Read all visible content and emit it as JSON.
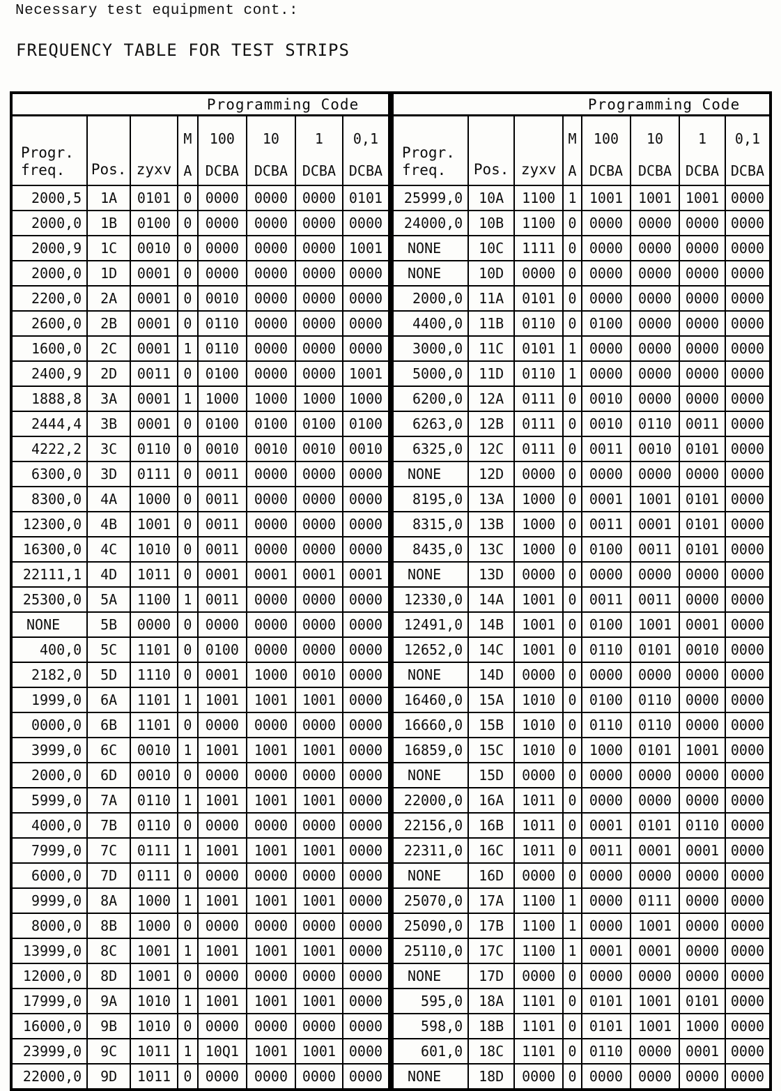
{
  "page": {
    "line1": "Necessary test equipment cont.:",
    "title": "FREQUENCY TABLE FOR TEST STRIPS"
  },
  "table": {
    "group_header": "Programming Code",
    "header": {
      "freq_line1": "Progr.",
      "freq_line2": "freq.",
      "pos": "Pos.",
      "zyxv": "zyxv",
      "m": "M",
      "a": "A",
      "w100": "100",
      "w10": "10",
      "w1": "1",
      "w01": "0,1",
      "dcba": "DCBA"
    },
    "left_rows": [
      [
        "2000,5",
        "1A",
        "0101",
        "0",
        "0000",
        "0000",
        "0000",
        "0101"
      ],
      [
        "2000,0",
        "1B",
        "0100",
        "0",
        "0000",
        "0000",
        "0000",
        "0000"
      ],
      [
        "2000,9",
        "1C",
        "0010",
        "0",
        "0000",
        "0000",
        "0000",
        "1001"
      ],
      [
        "2000,0",
        "1D",
        "0001",
        "0",
        "0000",
        "0000",
        "0000",
        "0000"
      ],
      [
        "2200,0",
        "2A",
        "0001",
        "0",
        "0010",
        "0000",
        "0000",
        "0000"
      ],
      [
        "2600,0",
        "2B",
        "0001",
        "0",
        "0110",
        "0000",
        "0000",
        "0000"
      ],
      [
        "1600,0",
        "2C",
        "0001",
        "1",
        "0110",
        "0000",
        "0000",
        "0000"
      ],
      [
        "2400,9",
        "2D",
        "0011",
        "0",
        "0100",
        "0000",
        "0000",
        "1001"
      ],
      [
        "1888,8",
        "3A",
        "0001",
        "1",
        "1000",
        "1000",
        "1000",
        "1000"
      ],
      [
        "2444,4",
        "3B",
        "0001",
        "0",
        "0100",
        "0100",
        "0100",
        "0100"
      ],
      [
        "4222,2",
        "3C",
        "0110",
        "0",
        "0010",
        "0010",
        "0010",
        "0010"
      ],
      [
        "6300,0",
        "3D",
        "0111",
        "0",
        "0011",
        "0000",
        "0000",
        "0000"
      ],
      [
        "8300,0",
        "4A",
        "1000",
        "0",
        "0011",
        "0000",
        "0000",
        "0000"
      ],
      [
        "12300,0",
        "4B",
        "1001",
        "0",
        "0011",
        "0000",
        "0000",
        "0000"
      ],
      [
        "16300,0",
        "4C",
        "1010",
        "0",
        "0011",
        "0000",
        "0000",
        "0000"
      ],
      [
        "22111,1",
        "4D",
        "1011",
        "0",
        "0001",
        "0001",
        "0001",
        "0001"
      ],
      [
        "25300,0",
        "5A",
        "1100",
        "1",
        "0011",
        "0000",
        "0000",
        "0000"
      ],
      [
        "NONE",
        "5B",
        "0000",
        "0",
        "0000",
        "0000",
        "0000",
        "0000"
      ],
      [
        "400,0",
        "5C",
        "1101",
        "0",
        "0100",
        "0000",
        "0000",
        "0000"
      ],
      [
        "2182,0",
        "5D",
        "1110",
        "0",
        "0001",
        "1000",
        "0010",
        "0000"
      ],
      [
        "1999,0",
        "6A",
        "1101",
        "1",
        "1001",
        "1001",
        "1001",
        "0000"
      ],
      [
        "0000,0",
        "6B",
        "1101",
        "0",
        "0000",
        "0000",
        "0000",
        "0000"
      ],
      [
        "3999,0",
        "6C",
        "0010",
        "1",
        "1001",
        "1001",
        "1001",
        "0000"
      ],
      [
        "2000,0",
        "6D",
        "0010",
        "0",
        "0000",
        "0000",
        "0000",
        "0000"
      ],
      [
        "5999,0",
        "7A",
        "0110",
        "1",
        "1001",
        "1001",
        "1001",
        "0000"
      ],
      [
        "4000,0",
        "7B",
        "0110",
        "0",
        "0000",
        "0000",
        "0000",
        "0000"
      ],
      [
        "7999,0",
        "7C",
        "0111",
        "1",
        "1001",
        "1001",
        "1001",
        "0000"
      ],
      [
        "6000,0",
        "7D",
        "0111",
        "0",
        "0000",
        "0000",
        "0000",
        "0000"
      ],
      [
        "9999,0",
        "8A",
        "1000",
        "1",
        "1001",
        "1001",
        "1001",
        "0000"
      ],
      [
        "8000,0",
        "8B",
        "1000",
        "0",
        "0000",
        "0000",
        "0000",
        "0000"
      ],
      [
        "13999,0",
        "8C",
        "1001",
        "1",
        "1001",
        "1001",
        "1001",
        "0000"
      ],
      [
        "12000,0",
        "8D",
        "1001",
        "0",
        "0000",
        "0000",
        "0000",
        "0000"
      ],
      [
        "17999,0",
        "9A",
        "1010",
        "1",
        "1001",
        "1001",
        "1001",
        "0000"
      ],
      [
        "16000,0",
        "9B",
        "1010",
        "0",
        "0000",
        "0000",
        "0000",
        "0000"
      ],
      [
        "23999,0",
        "9C",
        "1011",
        "1",
        "10Q1",
        "1001",
        "1001",
        "0000"
      ],
      [
        "22000,0",
        "9D",
        "1011",
        "0",
        "0000",
        "0000",
        "0000",
        "0000"
      ]
    ],
    "right_rows": [
      [
        "25999,0",
        "10A",
        "1100",
        "1",
        "1001",
        "1001",
        "1001",
        "0000"
      ],
      [
        "24000,0",
        "10B",
        "1100",
        "0",
        "0000",
        "0000",
        "0000",
        "0000"
      ],
      [
        "NONE",
        "10C",
        "1111",
        "0",
        "0000",
        "0000",
        "0000",
        "0000"
      ],
      [
        "NONE",
        "10D",
        "0000",
        "0",
        "0000",
        "0000",
        "0000",
        "0000"
      ],
      [
        "2000,0",
        "11A",
        "0101",
        "0",
        "0000",
        "0000",
        "0000",
        "0000"
      ],
      [
        "4400,0",
        "11B",
        "0110",
        "0",
        "0100",
        "0000",
        "0000",
        "0000"
      ],
      [
        "3000,0",
        "11C",
        "0101",
        "1",
        "0000",
        "0000",
        "0000",
        "0000"
      ],
      [
        "5000,0",
        "11D",
        "0110",
        "1",
        "0000",
        "0000",
        "0000",
        "0000"
      ],
      [
        "6200,0",
        "12A",
        "0111",
        "0",
        "0010",
        "0000",
        "0000",
        "0000"
      ],
      [
        "6263,0",
        "12B",
        "0111",
        "0",
        "0010",
        "0110",
        "0011",
        "0000"
      ],
      [
        "6325,0",
        "12C",
        "0111",
        "0",
        "0011",
        "0010",
        "0101",
        "0000"
      ],
      [
        "NONE",
        "12D",
        "0000",
        "0",
        "0000",
        "0000",
        "0000",
        "0000"
      ],
      [
        "8195,0",
        "13A",
        "1000",
        "0",
        "0001",
        "1001",
        "0101",
        "0000"
      ],
      [
        "8315,0",
        "13B",
        "1000",
        "0",
        "0011",
        "0001",
        "0101",
        "0000"
      ],
      [
        "8435,0",
        "13C",
        "1000",
        "0",
        "0100",
        "0011",
        "0101",
        "0000"
      ],
      [
        "NONE",
        "13D",
        "0000",
        "0",
        "0000",
        "0000",
        "0000",
        "0000"
      ],
      [
        "12330,0",
        "14A",
        "1001",
        "0",
        "0011",
        "0011",
        "0000",
        "0000"
      ],
      [
        "12491,0",
        "14B",
        "1001",
        "0",
        "0100",
        "1001",
        "0001",
        "0000"
      ],
      [
        "12652,0",
        "14C",
        "1001",
        "0",
        "0110",
        "0101",
        "0010",
        "0000"
      ],
      [
        "NONE",
        "14D",
        "0000",
        "0",
        "0000",
        "0000",
        "0000",
        "0000"
      ],
      [
        "16460,0",
        "15A",
        "1010",
        "0",
        "0100",
        "0110",
        "0000",
        "0000"
      ],
      [
        "16660,0",
        "15B",
        "1010",
        "0",
        "0110",
        "0110",
        "0000",
        "0000"
      ],
      [
        "16859,0",
        "15C",
        "1010",
        "0",
        "1000",
        "0101",
        "1001",
        "0000"
      ],
      [
        "NONE",
        "15D",
        "0000",
        "0",
        "0000",
        "0000",
        "0000",
        "0000"
      ],
      [
        "22000,0",
        "16A",
        "1011",
        "0",
        "0000",
        "0000",
        "0000",
        "0000"
      ],
      [
        "22156,0",
        "16B",
        "1011",
        "0",
        "0001",
        "0101",
        "0110",
        "0000"
      ],
      [
        "22311,0",
        "16C",
        "1011",
        "0",
        "0011",
        "0001",
        "0001",
        "0000"
      ],
      [
        "NONE",
        "16D",
        "0000",
        "0",
        "0000",
        "0000",
        "0000",
        "0000"
      ],
      [
        "25070,0",
        "17A",
        "1100",
        "1",
        "0000",
        "0111",
        "0000",
        "0000"
      ],
      [
        "25090,0",
        "17B",
        "1100",
        "1",
        "0000",
        "1001",
        "0000",
        "0000"
      ],
      [
        "25110,0",
        "17C",
        "1100",
        "1",
        "0001",
        "0001",
        "0000",
        "0000"
      ],
      [
        "NONE",
        "17D",
        "0000",
        "0",
        "0000",
        "0000",
        "0000",
        "0000"
      ],
      [
        "595,0",
        "18A",
        "1101",
        "0",
        "0101",
        "1001",
        "0101",
        "0000"
      ],
      [
        "598,0",
        "18B",
        "1101",
        "0",
        "0101",
        "1001",
        "1000",
        "0000"
      ],
      [
        "601,0",
        "18C",
        "1101",
        "0",
        "0110",
        "0000",
        "0001",
        "0000"
      ],
      [
        "NONE",
        "18D",
        "0000",
        "0",
        "0000",
        "0000",
        "0000",
        "0000"
      ]
    ]
  }
}
